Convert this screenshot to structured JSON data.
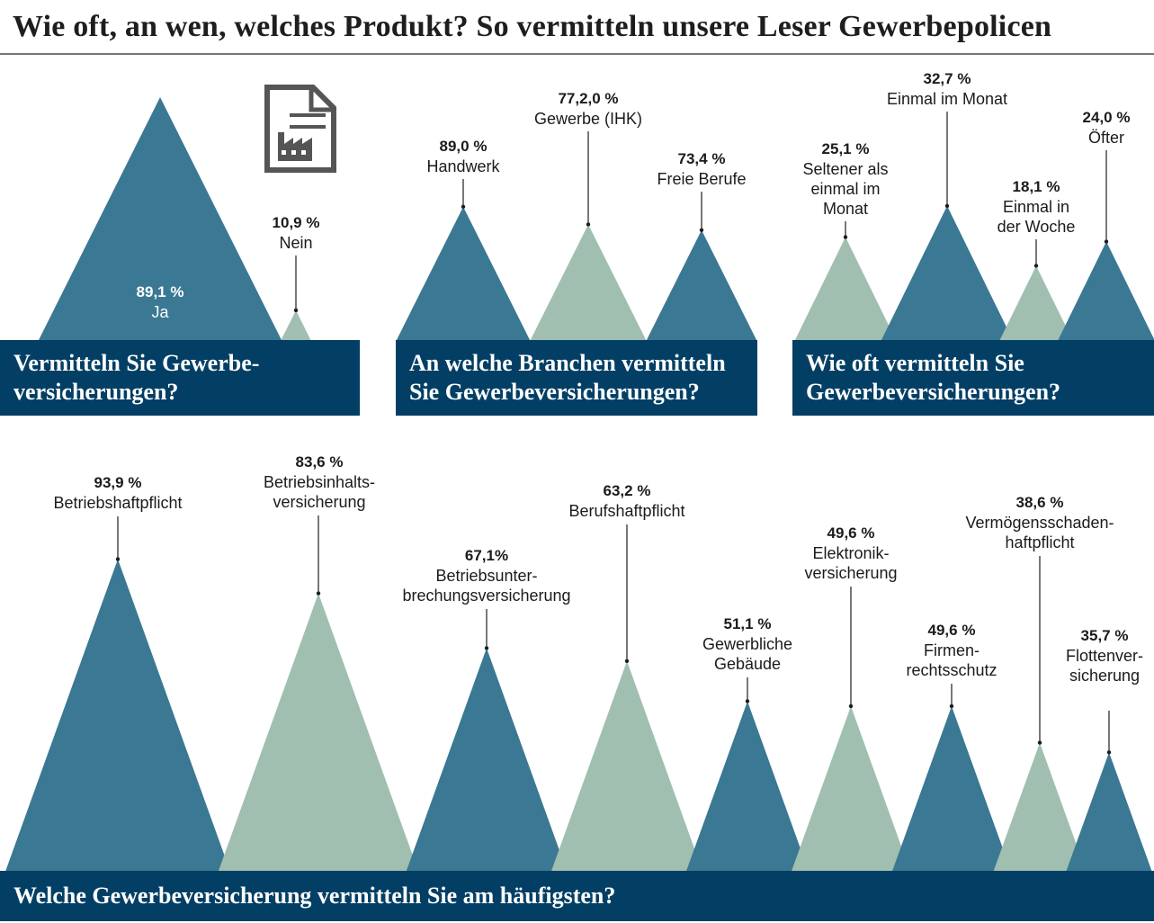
{
  "title": "Wie oft, an wen, welches Produkt? So vermitteln unsere Leser Gewerbepolicen",
  "colors": {
    "header": "#033f65",
    "dark": "#3a7893",
    "light": "#a0bfb0"
  },
  "icon": "document-factory-icon",
  "chart_data": [
    {
      "type": "bar",
      "title_lines": [
        "Vermitteln Sie Gewerbe-",
        "versicherungen?"
      ],
      "items": [
        {
          "label_lines": [
            "Ja"
          ],
          "value": 89.1,
          "value_label": "89,1 %",
          "color": "#3a7893"
        },
        {
          "label_lines": [
            "Nein"
          ],
          "value": 10.9,
          "value_label": "10,9 %",
          "color": "#a0bfb0"
        }
      ]
    },
    {
      "type": "bar",
      "title_lines": [
        "An welche Branchen vermitteln",
        "Sie Gewerbeversicherungen?"
      ],
      "items": [
        {
          "label_lines": [
            "Handwerk"
          ],
          "value": 89.0,
          "value_label": "89,0 %",
          "color": "#3a7893"
        },
        {
          "label_lines": [
            "Gewerbe (IHK)"
          ],
          "value": 77.2,
          "value_label": "77,2,0 %",
          "color": "#a0bfb0"
        },
        {
          "label_lines": [
            "Freie Berufe"
          ],
          "value": 73.4,
          "value_label": "73,4 %",
          "color": "#3a7893"
        }
      ]
    },
    {
      "type": "bar",
      "title_lines": [
        "Wie oft vermitteln Sie",
        "Gewerbeversicherungen?"
      ],
      "items": [
        {
          "label_lines": [
            "Seltener als",
            "einmal im",
            "Monat"
          ],
          "value": 25.1,
          "value_label": "25,1 %",
          "color": "#a0bfb0"
        },
        {
          "label_lines": [
            "Einmal im Monat"
          ],
          "value": 32.7,
          "value_label": "32,7 %",
          "color": "#3a7893"
        },
        {
          "label_lines": [
            "Einmal in",
            "der Woche"
          ],
          "value": 18.1,
          "value_label": "18,1 %",
          "color": "#a0bfb0"
        },
        {
          "label_lines": [
            "Öfter"
          ],
          "value": 24.0,
          "value_label": "24,0 %",
          "color": "#3a7893"
        }
      ]
    },
    {
      "type": "bar",
      "title_lines": [
        "Welche Gewerbeversicherung vermitteln Sie am häufigsten?"
      ],
      "items": [
        {
          "label_lines": [
            "Betriebshaftpflicht"
          ],
          "value": 93.9,
          "value_label": "93,9 %",
          "color": "#3a7893"
        },
        {
          "label_lines": [
            "Betriebsinhalts-",
            "versicherung"
          ],
          "value": 83.6,
          "value_label": "83,6 %",
          "color": "#a0bfb0"
        },
        {
          "label_lines": [
            "Betriebsunter-",
            "brechungsversicherung"
          ],
          "value": 67.1,
          "value_label": "67,1%",
          "color": "#3a7893"
        },
        {
          "label_lines": [
            "Berufshaftpflicht"
          ],
          "value": 63.2,
          "value_label": "63,2 %",
          "color": "#a0bfb0"
        },
        {
          "label_lines": [
            "Gewerbliche",
            "Gebäude"
          ],
          "value": 51.1,
          "value_label": "51,1 %",
          "color": "#3a7893"
        },
        {
          "label_lines": [
            "Elektronik-",
            "versicherung"
          ],
          "value": 49.6,
          "value_label": "49,6 %",
          "color": "#a0bfb0"
        },
        {
          "label_lines": [
            "Firmen-",
            "rechtsschutz"
          ],
          "value": 49.6,
          "value_label": "49,6 %",
          "color": "#3a7893"
        },
        {
          "label_lines": [
            "Vermögensschaden-",
            "haftpflicht"
          ],
          "value": 38.6,
          "value_label": "38,6 %",
          "color": "#a0bfb0"
        },
        {
          "label_lines": [
            "Flottenver-",
            "sicherung"
          ],
          "value": 35.7,
          "value_label": "35,7 %",
          "color": "#3a7893"
        }
      ]
    }
  ]
}
